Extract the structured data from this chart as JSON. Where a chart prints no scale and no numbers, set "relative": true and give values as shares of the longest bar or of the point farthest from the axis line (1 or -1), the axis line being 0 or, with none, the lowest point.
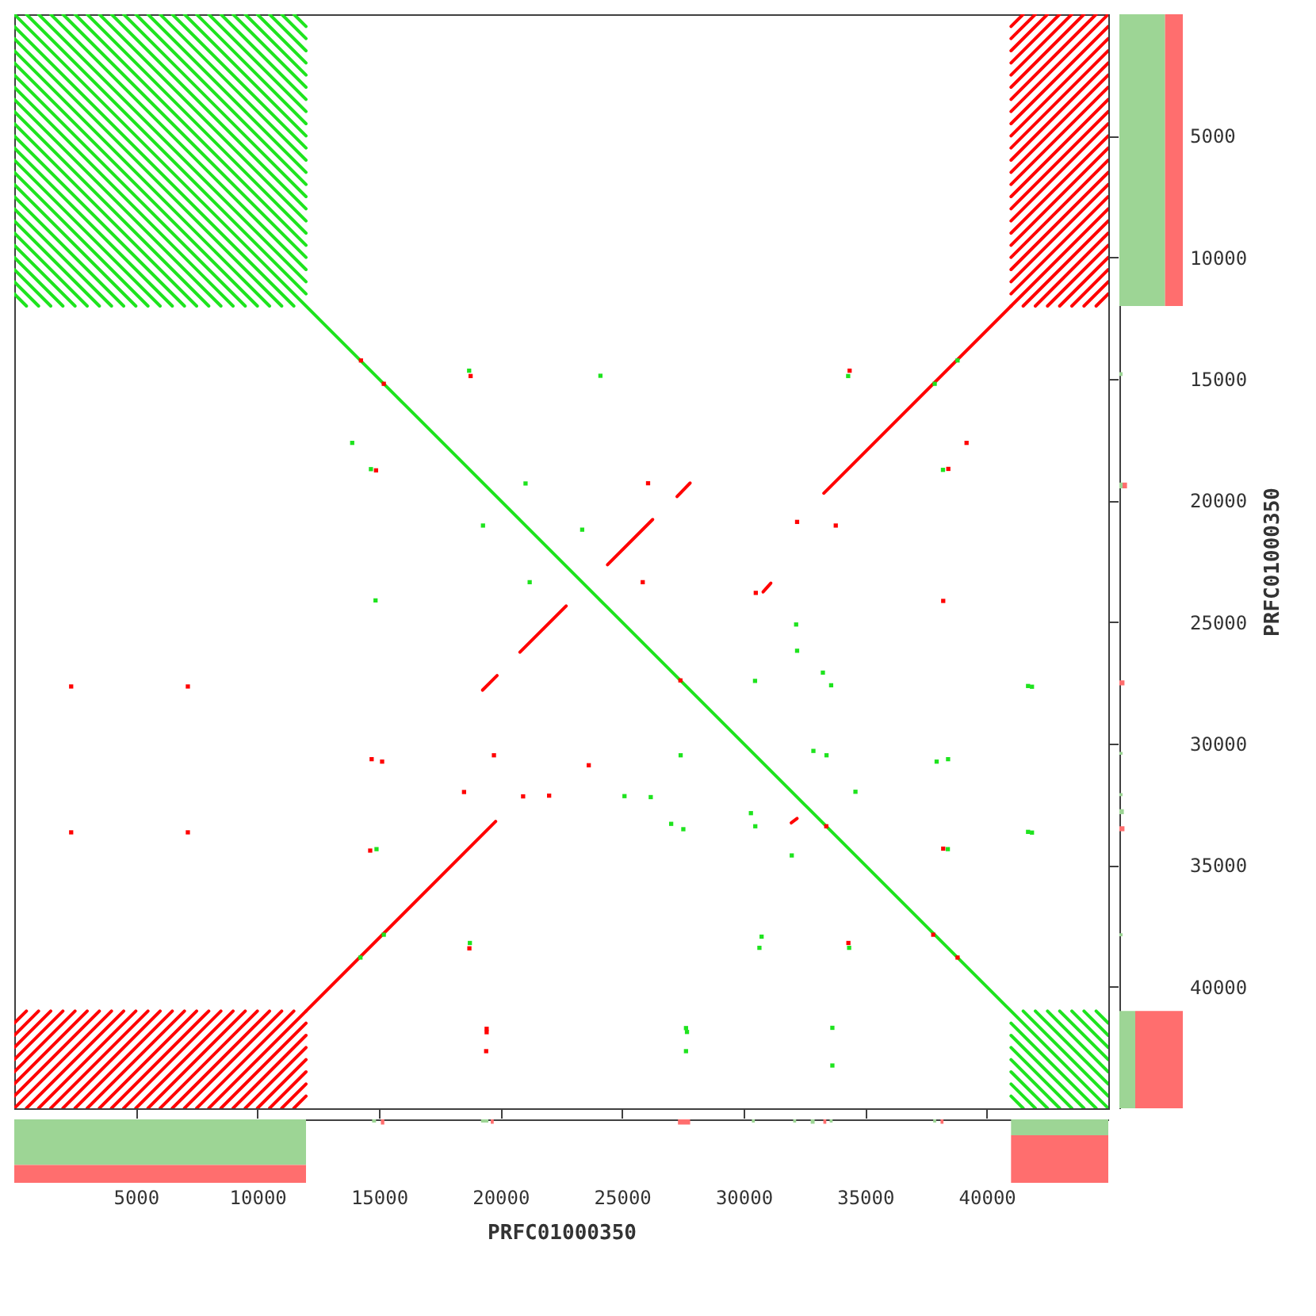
{
  "chart_data": [
    {
      "type": "line",
      "xlim": [
        0,
        45000
      ],
      "ylim": [
        45000,
        0
      ],
      "xticks": [
        5000,
        10000,
        15000,
        20000,
        25000,
        30000,
        35000,
        40000
      ],
      "yticks": [
        5000,
        10000,
        15000,
        20000,
        25000,
        30000,
        35000,
        40000
      ],
      "tick_labels": false,
      "line_style": "solid",
      "series": [
        {
          "color": "#1ee31e",
          "x": [
            500,
            12000
          ],
          "values": [
            0,
            11500
          ]
        },
        {
          "color": "#1ee31e",
          "x": [
            1000,
            12000
          ],
          "values": [
            0,
            11000
          ]
        },
        {
          "color": "#1ee31e",
          "x": [
            1500,
            12000
          ],
          "values": [
            0,
            10500
          ]
        },
        {
          "color": "#1ee31e",
          "x": [
            2000,
            12000
          ],
          "values": [
            0,
            10000
          ]
        },
        {
          "color": "#1ee31e",
          "x": [
            2500,
            12000
          ],
          "values": [
            0,
            9500
          ]
        },
        {
          "color": "#1ee31e",
          "x": [
            3000,
            12000
          ],
          "values": [
            0,
            9000
          ]
        },
        {
          "color": "#1ee31e",
          "x": [
            3500,
            12000
          ],
          "values": [
            0,
            8500
          ]
        },
        {
          "color": "#1ee31e",
          "x": [
            4000,
            12000
          ],
          "values": [
            0,
            8000
          ]
        },
        {
          "color": "#1ee31e",
          "x": [
            4500,
            12000
          ],
          "values": [
            0,
            7500
          ]
        },
        {
          "color": "#1ee31e",
          "x": [
            5000,
            12000
          ],
          "values": [
            0,
            7000
          ]
        },
        {
          "color": "#1ee31e",
          "x": [
            5500,
            12000
          ],
          "values": [
            0,
            6500
          ]
        },
        {
          "color": "#1ee31e",
          "x": [
            6000,
            12000
          ],
          "values": [
            0,
            6000
          ]
        },
        {
          "color": "#1ee31e",
          "x": [
            6500,
            12000
          ],
          "values": [
            0,
            5500
          ]
        },
        {
          "color": "#1ee31e",
          "x": [
            7000,
            12000
          ],
          "values": [
            0,
            5000
          ]
        },
        {
          "color": "#1ee31e",
          "x": [
            7500,
            12000
          ],
          "values": [
            0,
            4500
          ]
        },
        {
          "color": "#1ee31e",
          "x": [
            8000,
            12000
          ],
          "values": [
            0,
            4000
          ]
        },
        {
          "color": "#1ee31e",
          "x": [
            8500,
            12000
          ],
          "values": [
            0,
            3500
          ]
        },
        {
          "color": "#1ee31e",
          "x": [
            9000,
            12000
          ],
          "values": [
            0,
            3000
          ]
        },
        {
          "color": "#1ee31e",
          "x": [
            9500,
            12000
          ],
          "values": [
            0,
            2500
          ]
        },
        {
          "color": "#1ee31e",
          "x": [
            10000,
            12000
          ],
          "values": [
            0,
            2000
          ]
        },
        {
          "color": "#1ee31e",
          "x": [
            10500,
            12000
          ],
          "values": [
            0,
            1500
          ]
        },
        {
          "color": "#1ee31e",
          "x": [
            11000,
            12000
          ],
          "values": [
            0,
            1000
          ]
        },
        {
          "color": "#1ee31e",
          "x": [
            11500,
            12000
          ],
          "values": [
            0,
            500
          ]
        },
        {
          "color": "#1ee31e",
          "x": [
            0,
            11500
          ],
          "values": [
            500,
            12000
          ]
        },
        {
          "color": "#1ee31e",
          "x": [
            0,
            11000
          ],
          "values": [
            1000,
            12000
          ]
        },
        {
          "color": "#1ee31e",
          "x": [
            0,
            10500
          ],
          "values": [
            1500,
            12000
          ]
        },
        {
          "color": "#1ee31e",
          "x": [
            0,
            10000
          ],
          "values": [
            2000,
            12000
          ]
        },
        {
          "color": "#1ee31e",
          "x": [
            0,
            9500
          ],
          "values": [
            2500,
            12000
          ]
        },
        {
          "color": "#1ee31e",
          "x": [
            0,
            9000
          ],
          "values": [
            3000,
            12000
          ]
        },
        {
          "color": "#1ee31e",
          "x": [
            0,
            8500
          ],
          "values": [
            3500,
            12000
          ]
        },
        {
          "color": "#1ee31e",
          "x": [
            0,
            8000
          ],
          "values": [
            4000,
            12000
          ]
        },
        {
          "color": "#1ee31e",
          "x": [
            0,
            7500
          ],
          "values": [
            4500,
            12000
          ]
        },
        {
          "color": "#1ee31e",
          "x": [
            0,
            7000
          ],
          "values": [
            5000,
            12000
          ]
        },
        {
          "color": "#1ee31e",
          "x": [
            0,
            6500
          ],
          "values": [
            5500,
            12000
          ]
        },
        {
          "color": "#1ee31e",
          "x": [
            0,
            6000
          ],
          "values": [
            6000,
            12000
          ]
        },
        {
          "color": "#1ee31e",
          "x": [
            0,
            5500
          ],
          "values": [
            6500,
            12000
          ]
        },
        {
          "color": "#1ee31e",
          "x": [
            0,
            5000
          ],
          "values": [
            7000,
            12000
          ]
        },
        {
          "color": "#1ee31e",
          "x": [
            0,
            4500
          ],
          "values": [
            7500,
            12000
          ]
        },
        {
          "color": "#1ee31e",
          "x": [
            0,
            4000
          ],
          "values": [
            8000,
            12000
          ]
        },
        {
          "color": "#1ee31e",
          "x": [
            0,
            3500
          ],
          "values": [
            8500,
            12000
          ]
        },
        {
          "color": "#1ee31e",
          "x": [
            0,
            3000
          ],
          "values": [
            9000,
            12000
          ]
        },
        {
          "color": "#1ee31e",
          "x": [
            0,
            2500
          ],
          "values": [
            9500,
            12000
          ]
        },
        {
          "color": "#1ee31e",
          "x": [
            0,
            2000
          ],
          "values": [
            10000,
            12000
          ]
        },
        {
          "color": "#1ee31e",
          "x": [
            0,
            1500
          ],
          "values": [
            10500,
            12000
          ]
        },
        {
          "color": "#1ee31e",
          "x": [
            0,
            1000
          ],
          "values": [
            11000,
            12000
          ]
        },
        {
          "color": "#1ee31e",
          "x": [
            0,
            500
          ],
          "values": [
            11500,
            12000
          ]
        },
        {
          "color": "#1ee31e",
          "x": [
            41500,
            45000
          ],
          "values": [
            41000,
            44500
          ]
        },
        {
          "color": "#1ee31e",
          "x": [
            42000,
            45000
          ],
          "values": [
            41000,
            44000
          ]
        },
        {
          "color": "#1ee31e",
          "x": [
            42500,
            45000
          ],
          "values": [
            41000,
            43500
          ]
        },
        {
          "color": "#1ee31e",
          "x": [
            43000,
            45000
          ],
          "values": [
            41000,
            43000
          ]
        },
        {
          "color": "#1ee31e",
          "x": [
            43500,
            45000
          ],
          "values": [
            41000,
            42500
          ]
        },
        {
          "color": "#1ee31e",
          "x": [
            44000,
            45000
          ],
          "values": [
            41000,
            42000
          ]
        },
        {
          "color": "#1ee31e",
          "x": [
            44500,
            45000
          ],
          "values": [
            41000,
            41500
          ]
        },
        {
          "color": "#1ee31e",
          "x": [
            41000,
            44500
          ],
          "values": [
            41500,
            45000
          ]
        },
        {
          "color": "#1ee31e",
          "x": [
            41000,
            44000
          ],
          "values": [
            42000,
            45000
          ]
        },
        {
          "color": "#1ee31e",
          "x": [
            41000,
            43500
          ],
          "values": [
            42500,
            45000
          ]
        },
        {
          "color": "#1ee31e",
          "x": [
            41000,
            43000
          ],
          "values": [
            43000,
            45000
          ]
        },
        {
          "color": "#1ee31e",
          "x": [
            41000,
            42500
          ],
          "values": [
            43500,
            45000
          ]
        },
        {
          "color": "#1ee31e",
          "x": [
            41000,
            42000
          ],
          "values": [
            44000,
            45000
          ]
        },
        {
          "color": "#1ee31e",
          "x": [
            41000,
            41500
          ],
          "values": [
            44500,
            45000
          ]
        },
        {
          "color": "#ff0000",
          "x": [
            0,
            500
          ],
          "values": [
            41500,
            41000
          ]
        },
        {
          "color": "#ff0000",
          "x": [
            0,
            1000
          ],
          "values": [
            42000,
            41000
          ]
        },
        {
          "color": "#ff0000",
          "x": [
            0,
            1500
          ],
          "values": [
            42500,
            41000
          ]
        },
        {
          "color": "#ff0000",
          "x": [
            0,
            2000
          ],
          "values": [
            43000,
            41000
          ]
        },
        {
          "color": "#ff0000",
          "x": [
            0,
            2500
          ],
          "values": [
            43500,
            41000
          ]
        },
        {
          "color": "#ff0000",
          "x": [
            0,
            3000
          ],
          "values": [
            44000,
            41000
          ]
        },
        {
          "color": "#ff0000",
          "x": [
            0,
            3500
          ],
          "values": [
            44500,
            41000
          ]
        },
        {
          "color": "#ff0000",
          "x": [
            0,
            4000
          ],
          "values": [
            45000,
            41000
          ]
        },
        {
          "color": "#ff0000",
          "x": [
            500,
            4500
          ],
          "values": [
            45000,
            41000
          ]
        },
        {
          "color": "#ff0000",
          "x": [
            1000,
            5000
          ],
          "values": [
            45000,
            41000
          ]
        },
        {
          "color": "#ff0000",
          "x": [
            1500,
            5500
          ],
          "values": [
            45000,
            41000
          ]
        },
        {
          "color": "#ff0000",
          "x": [
            2000,
            6000
          ],
          "values": [
            45000,
            41000
          ]
        },
        {
          "color": "#ff0000",
          "x": [
            2500,
            6500
          ],
          "values": [
            45000,
            41000
          ]
        },
        {
          "color": "#ff0000",
          "x": [
            3000,
            7000
          ],
          "values": [
            45000,
            41000
          ]
        },
        {
          "color": "#ff0000",
          "x": [
            3500,
            7500
          ],
          "values": [
            45000,
            41000
          ]
        },
        {
          "color": "#ff0000",
          "x": [
            4000,
            8000
          ],
          "values": [
            45000,
            41000
          ]
        },
        {
          "color": "#ff0000",
          "x": [
            4500,
            8500
          ],
          "values": [
            45000,
            41000
          ]
        },
        {
          "color": "#ff0000",
          "x": [
            5000,
            9000
          ],
          "values": [
            45000,
            41000
          ]
        },
        {
          "color": "#ff0000",
          "x": [
            5500,
            9500
          ],
          "values": [
            45000,
            41000
          ]
        },
        {
          "color": "#ff0000",
          "x": [
            6000,
            10000
          ],
          "values": [
            45000,
            41000
          ]
        },
        {
          "color": "#ff0000",
          "x": [
            6500,
            10500
          ],
          "values": [
            45000,
            41000
          ]
        },
        {
          "color": "#ff0000",
          "x": [
            7000,
            11000
          ],
          "values": [
            45000,
            41000
          ]
        },
        {
          "color": "#ff0000",
          "x": [
            7500,
            11500
          ],
          "values": [
            45000,
            41000
          ]
        },
        {
          "color": "#ff0000",
          "x": [
            8000,
            12000
          ],
          "values": [
            45000,
            41000
          ]
        },
        {
          "color": "#ff0000",
          "x": [
            8500,
            12000
          ],
          "values": [
            45000,
            41500
          ]
        },
        {
          "color": "#ff0000",
          "x": [
            9000,
            12000
          ],
          "values": [
            45000,
            42000
          ]
        },
        {
          "color": "#ff0000",
          "x": [
            9500,
            12000
          ],
          "values": [
            45000,
            42500
          ]
        },
        {
          "color": "#ff0000",
          "x": [
            10000,
            12000
          ],
          "values": [
            45000,
            43000
          ]
        },
        {
          "color": "#ff0000",
          "x": [
            10500,
            12000
          ],
          "values": [
            45000,
            43500
          ]
        },
        {
          "color": "#ff0000",
          "x": [
            11000,
            12000
          ],
          "values": [
            45000,
            44000
          ]
        },
        {
          "color": "#ff0000",
          "x": [
            11500,
            12000
          ],
          "values": [
            45000,
            44500
          ]
        },
        {
          "color": "#ff0000",
          "x": [
            41500,
            41000
          ],
          "values": [
            0,
            500
          ]
        },
        {
          "color": "#ff0000",
          "x": [
            42000,
            41000
          ],
          "values": [
            0,
            1000
          ]
        },
        {
          "color": "#ff0000",
          "x": [
            42500,
            41000
          ],
          "values": [
            0,
            1500
          ]
        },
        {
          "color": "#ff0000",
          "x": [
            43000,
            41000
          ],
          "values": [
            0,
            2000
          ]
        },
        {
          "color": "#ff0000",
          "x": [
            43500,
            41000
          ],
          "values": [
            0,
            2500
          ]
        },
        {
          "color": "#ff0000",
          "x": [
            44000,
            41000
          ],
          "values": [
            0,
            3000
          ]
        },
        {
          "color": "#ff0000",
          "x": [
            44500,
            41000
          ],
          "values": [
            0,
            3500
          ]
        },
        {
          "color": "#ff0000",
          "x": [
            45000,
            41000
          ],
          "values": [
            0,
            4000
          ]
        },
        {
          "color": "#ff0000",
          "x": [
            45000,
            41000
          ],
          "values": [
            500,
            4500
          ]
        },
        {
          "color": "#ff0000",
          "x": [
            45000,
            41000
          ],
          "values": [
            1000,
            5000
          ]
        },
        {
          "color": "#ff0000",
          "x": [
            45000,
            41000
          ],
          "values": [
            1500,
            5500
          ]
        },
        {
          "color": "#ff0000",
          "x": [
            45000,
            41000
          ],
          "values": [
            2000,
            6000
          ]
        },
        {
          "color": "#ff0000",
          "x": [
            45000,
            41000
          ],
          "values": [
            2500,
            6500
          ]
        },
        {
          "color": "#ff0000",
          "x": [
            45000,
            41000
          ],
          "values": [
            3000,
            7000
          ]
        },
        {
          "color": "#ff0000",
          "x": [
            45000,
            41000
          ],
          "values": [
            3500,
            7500
          ]
        },
        {
          "color": "#ff0000",
          "x": [
            45000,
            41000
          ],
          "values": [
            4000,
            8000
          ]
        },
        {
          "color": "#ff0000",
          "x": [
            45000,
            41000
          ],
          "values": [
            4500,
            8500
          ]
        },
        {
          "color": "#ff0000",
          "x": [
            45000,
            41000
          ],
          "values": [
            5000,
            9000
          ]
        },
        {
          "color": "#ff0000",
          "x": [
            45000,
            41000
          ],
          "values": [
            5500,
            9500
          ]
        },
        {
          "color": "#ff0000",
          "x": [
            45000,
            41000
          ],
          "values": [
            6000,
            10000
          ]
        },
        {
          "color": "#ff0000",
          "x": [
            45000,
            41000
          ],
          "values": [
            6500,
            10500
          ]
        },
        {
          "color": "#ff0000",
          "x": [
            45000,
            41000
          ],
          "values": [
            7000,
            11000
          ]
        },
        {
          "color": "#ff0000",
          "x": [
            45000,
            41000
          ],
          "values": [
            7500,
            11500
          ]
        },
        {
          "color": "#ff0000",
          "x": [
            45000,
            41000
          ],
          "values": [
            8000,
            12000
          ]
        },
        {
          "color": "#ff0000",
          "x": [
            45000,
            41500
          ],
          "values": [
            8500,
            12000
          ]
        },
        {
          "color": "#ff0000",
          "x": [
            45000,
            42000
          ],
          "values": [
            9000,
            12000
          ]
        },
        {
          "color": "#ff0000",
          "x": [
            45000,
            42500
          ],
          "values": [
            9500,
            12000
          ]
        },
        {
          "color": "#ff0000",
          "x": [
            45000,
            43000
          ],
          "values": [
            10000,
            12000
          ]
        },
        {
          "color": "#ff0000",
          "x": [
            45000,
            43500
          ],
          "values": [
            10500,
            12000
          ]
        },
        {
          "color": "#ff0000",
          "x": [
            45000,
            44000
          ],
          "values": [
            11000,
            12000
          ]
        },
        {
          "color": "#ff0000",
          "x": [
            45000,
            44500
          ],
          "values": [
            11500,
            12000
          ]
        },
        {
          "color": "#1ee31e",
          "x": [
            0,
            45000
          ],
          "values": [
            0,
            45000
          ]
        },
        {
          "color": "#ff0000",
          "x": [
            12000,
            19800
          ],
          "values": [
            41000,
            33200
          ]
        },
        {
          "color": "#ff0000",
          "x": [
            33300,
            41000
          ],
          "values": [
            19700,
            12000
          ]
        },
        {
          "color": "#ff0000",
          "x": [
            20800,
            22700
          ],
          "values": [
            26240,
            24340
          ]
        },
        {
          "color": "#ff0000",
          "x": [
            24400,
            26260
          ],
          "values": [
            22640,
            20780
          ]
        },
        {
          "color": "#ff0000",
          "x": [
            19260,
            19860
          ],
          "values": [
            27800,
            27200
          ]
        },
        {
          "color": "#ff0000",
          "x": [
            27260,
            27800
          ],
          "values": [
            19840,
            19280
          ]
        },
        {
          "color": "#ff0000",
          "x": [
            30800,
            31120
          ],
          "values": [
            23760,
            23400
          ]
        },
        {
          "color": "#ff0000",
          "x": [
            31960,
            32200
          ],
          "values": [
            33260,
            33080
          ]
        },
        {
          "type": "scatter",
          "marker": "square",
          "color": "#1ee31e",
          "x": [
            18710,
            24110,
            13900,
            14670,
            21030,
            19280,
            14860,
            38800,
            37860,
            34300,
            38200,
            32160,
            32200,
            30470,
            33260,
            41700,
            41860,
            27410,
            32870,
            33410,
            37940,
            38410,
            34600,
            25100,
            26180,
            30300,
            30480,
            27020,
            41700,
            41860,
            38400,
            31980,
            30740,
            30650,
            34340,
            27630,
            27670,
            27630,
            33650,
            33650,
            14240,
            15200,
            14900,
            18740,
            23360,
            21200,
            33600,
            27520
          ],
          "values": [
            14660,
            14870,
            17630,
            18710,
            19300,
            21030,
            24110,
            14240,
            15200,
            14880,
            18740,
            25100,
            26180,
            27420,
            27080,
            27630,
            27660,
            30480,
            30300,
            30480,
            30740,
            30640,
            31980,
            32160,
            32200,
            32860,
            33400,
            33300,
            33630,
            33660,
            34340,
            34600,
            37940,
            38400,
            38400,
            41700,
            41860,
            42650,
            41690,
            43240,
            38800,
            37860,
            34340,
            38200,
            21200,
            23360,
            27600,
            33520
          ]
        },
        {
          "type": "scatter",
          "marker": "square",
          "color": "#ff0000",
          "x": [
            14260,
            15200,
            18770,
            14880,
            34360,
            39170,
            38420,
            26070,
            32200,
            33790,
            25850,
            30500,
            38210,
            2340,
            7140,
            2340,
            7140,
            14700,
            15130,
            19730,
            23630,
            18500,
            20930,
            22000,
            14640,
            18720,
            19430,
            19430,
            19410,
            38210,
            34310,
            27400,
            33400,
            37800,
            38800
          ],
          "values": [
            14240,
            15200,
            14880,
            18760,
            14660,
            17630,
            18700,
            19290,
            20880,
            21030,
            23360,
            23800,
            24130,
            27650,
            27650,
            33650,
            33650,
            30640,
            30740,
            30480,
            30890,
            31990,
            32170,
            32140,
            34400,
            38420,
            41730,
            41870,
            42650,
            34320,
            38200,
            27400,
            33400,
            37860,
            38800
          ]
        }
      ]
    },
    {
      "type": "area",
      "orientation": "horizontal",
      "stacked": true,
      "relative": true,
      "tick_labels": "y",
      "ylim": [
        45000,
        0
      ],
      "yticks": [
        5000,
        10000,
        15000,
        20000,
        25000,
        30000,
        35000,
        40000
      ],
      "ylabel": "PRFC01000350",
      "x": [
        0,
        12000,
        12000,
        14720,
        14720,
        14880,
        14880,
        19260,
        19260,
        19500,
        19500,
        27400,
        27400,
        27600,
        27600,
        30340,
        30340,
        30460,
        30460,
        32040,
        32040,
        32160,
        32160,
        32700,
        32700,
        32900,
        32900,
        33400,
        33400,
        33600,
        33600,
        37800,
        37800,
        37920,
        37920,
        41000,
        41000,
        45000
      ],
      "series": [
        {
          "color": "#9dd595",
          "values": [
            0.72,
            0.72,
            0,
            0,
            0.05,
            0.05,
            0,
            0,
            0.05,
            0.05,
            0,
            0,
            0,
            0,
            0,
            0,
            0.05,
            0.05,
            0,
            0,
            0.05,
            0.05,
            0,
            0,
            0.07,
            0.07,
            0,
            0,
            0,
            0,
            0,
            0,
            0.05,
            0.05,
            0,
            0,
            0.25,
            0.25
          ]
        },
        {
          "color": "#ff6e6e",
          "values": [
            0.28,
            0.28,
            0,
            0,
            0,
            0,
            0,
            0,
            0.07,
            0.07,
            0,
            0,
            0.08,
            0.08,
            0,
            0,
            0,
            0,
            0,
            0,
            0,
            0,
            0,
            0,
            0,
            0,
            0,
            0,
            0.08,
            0.08,
            0,
            0,
            0,
            0,
            0,
            0,
            0.75,
            0.75
          ]
        }
      ]
    },
    {
      "type": "area",
      "stacked": true,
      "relative": true,
      "tick_labels": "x",
      "xlim": [
        0,
        45000
      ],
      "xticks": [
        5000,
        10000,
        15000,
        20000,
        25000,
        30000,
        35000,
        40000
      ],
      "xlabel": "PRFC01000350",
      "x": [
        0,
        12000,
        12000,
        14720,
        14720,
        14880,
        14880,
        15080,
        15080,
        15220,
        15220,
        19200,
        19200,
        19500,
        19500,
        19600,
        19600,
        19720,
        19720,
        27300,
        27300,
        27800,
        27800,
        30340,
        30340,
        30460,
        30460,
        32040,
        32040,
        32160,
        32160,
        32760,
        32760,
        32920,
        32920,
        33280,
        33280,
        33400,
        33400,
        33540,
        33540,
        33660,
        33660,
        37800,
        37800,
        37920,
        37920,
        38100,
        38100,
        38220,
        38220,
        41000,
        41000,
        45000
      ],
      "series": [
        {
          "color": "#9dd595",
          "values": [
            -0.72,
            -0.72,
            0,
            0,
            -0.05,
            -0.05,
            0,
            0,
            0,
            0,
            0,
            0,
            -0.05,
            -0.05,
            0,
            0,
            0,
            0,
            0,
            0,
            0,
            0,
            0,
            0,
            -0.05,
            -0.05,
            0,
            0,
            -0.05,
            -0.05,
            0,
            0,
            -0.07,
            -0.07,
            0,
            0,
            0,
            0,
            0,
            0,
            -0.05,
            -0.05,
            0,
            0,
            -0.05,
            -0.05,
            0,
            0,
            0,
            0,
            0,
            0,
            -0.25,
            -0.25
          ]
        },
        {
          "color": "#ff6e6e",
          "values": [
            -0.28,
            -0.28,
            0,
            0,
            0,
            0,
            0,
            0,
            -0.08,
            -0.08,
            0,
            0,
            0,
            0,
            0,
            0,
            -0.07,
            -0.07,
            0,
            0,
            -0.08,
            -0.08,
            0,
            0,
            0,
            0,
            0,
            0,
            0,
            0,
            0,
            0,
            0,
            0,
            0,
            0,
            -0.07,
            -0.07,
            0,
            0,
            0,
            0,
            0,
            0,
            0,
            0,
            0,
            0,
            -0.07,
            -0.07,
            0,
            0,
            -0.75,
            -0.75
          ]
        }
      ]
    }
  ]
}
